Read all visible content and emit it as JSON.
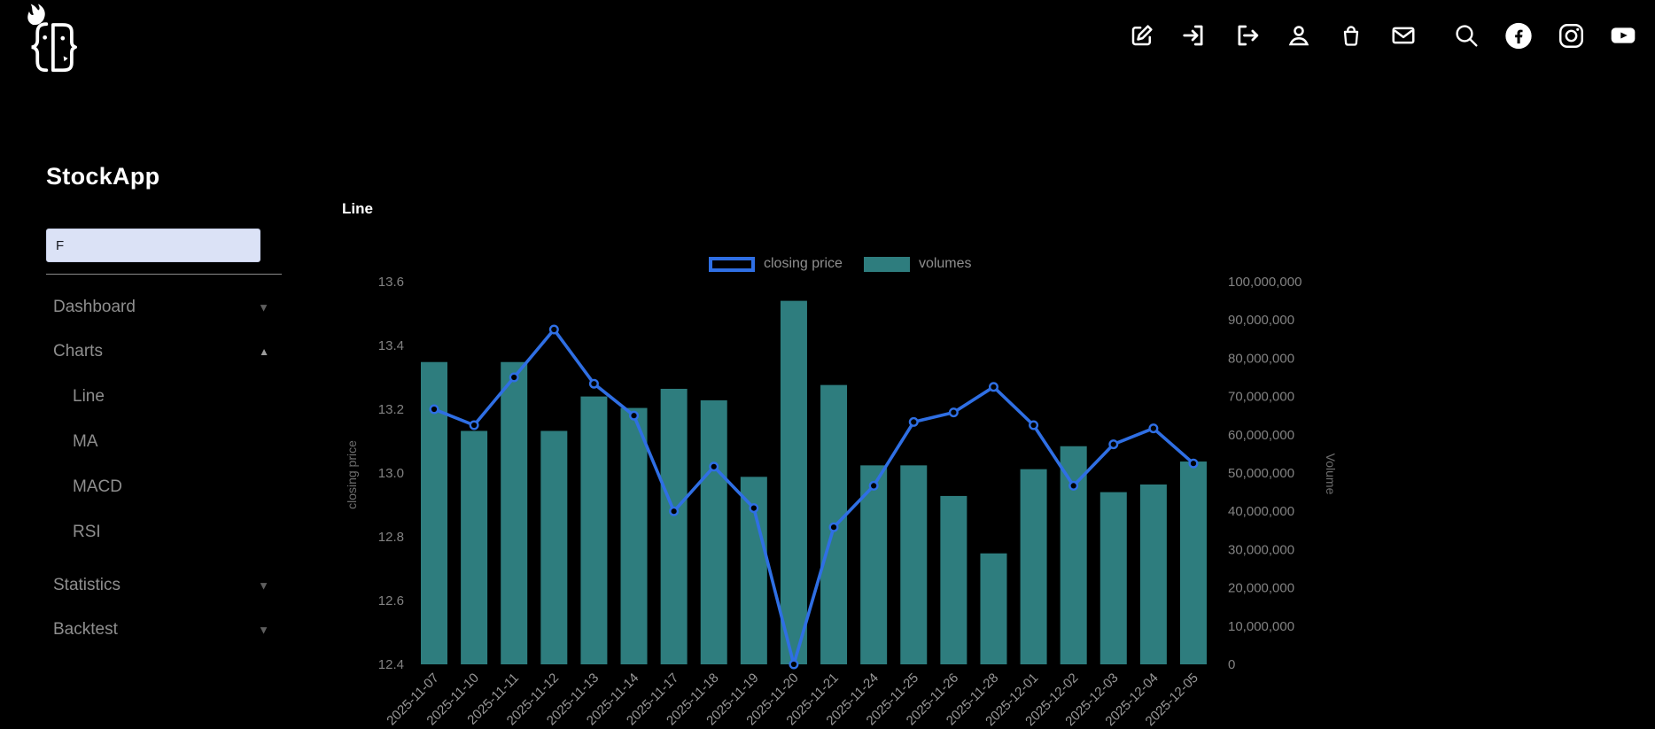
{
  "app": {
    "name": "StockApp"
  },
  "header": {
    "icons": [
      {
        "name": "edit"
      },
      {
        "name": "login"
      },
      {
        "name": "logout"
      },
      {
        "name": "user"
      },
      {
        "name": "shopping-bag"
      },
      {
        "name": "mail"
      },
      {
        "name": "search"
      },
      {
        "name": "facebook"
      },
      {
        "name": "instagram"
      },
      {
        "name": "youtube"
      }
    ]
  },
  "sidebar": {
    "title": "StockApp",
    "search": {
      "value": "F",
      "placeholder": ""
    },
    "items": [
      {
        "label": "Dashboard",
        "level": 0,
        "expand_state": "collapsed"
      },
      {
        "label": "Charts",
        "level": 0,
        "expand_state": "expanded"
      },
      {
        "label": "Line",
        "level": 1
      },
      {
        "label": "MA",
        "level": 1
      },
      {
        "label": "MACD",
        "level": 1
      },
      {
        "label": "RSI",
        "level": 1
      },
      {
        "label": "Statistics",
        "level": 0,
        "expand_state": "collapsed"
      },
      {
        "label": "Backtest",
        "level": 0,
        "expand_state": "collapsed"
      }
    ]
  },
  "main": {
    "title": "Line"
  },
  "chart_data": {
    "type": "bar",
    "subtype": "dual-axis bar + line",
    "title": "Line",
    "legend": [
      "closing price",
      "volumes"
    ],
    "legend_position": "top-center",
    "grid": false,
    "categories": [
      "2025-11-07",
      "2025-11-10",
      "2025-11-11",
      "2025-11-12",
      "2025-11-13",
      "2025-11-14",
      "2025-11-17",
      "2025-11-18",
      "2025-11-19",
      "2025-11-20",
      "2025-11-21",
      "2025-11-24",
      "2025-11-25",
      "2025-11-26",
      "2025-11-28",
      "2025-12-01",
      "2025-12-02",
      "2025-12-03",
      "2025-12-04",
      "2025-12-05"
    ],
    "series": [
      {
        "name": "closing price",
        "type": "line",
        "axis": "left",
        "color": "#2f6fe4",
        "values": [
          13.2,
          13.15,
          13.3,
          13.45,
          13.28,
          13.18,
          12.88,
          13.02,
          12.89,
          12.4,
          12.83,
          12.96,
          13.16,
          13.19,
          13.27,
          13.15,
          12.96,
          13.09,
          13.14,
          13.03
        ]
      },
      {
        "name": "volumes",
        "type": "bar",
        "axis": "right",
        "color": "#2e7d7e",
        "values": [
          79000000,
          61000000,
          79000000,
          61000000,
          70000000,
          67000000,
          72000000,
          69000000,
          49000000,
          95000000,
          73000000,
          52000000,
          52000000,
          44000000,
          29000000,
          51000000,
          57000000,
          45000000,
          47000000,
          53000000
        ]
      }
    ],
    "left_axis": {
      "label": "closing price",
      "min": 12.4,
      "max": 13.6,
      "tick_step": 0.2,
      "ticks": [
        "12.4",
        "12.6",
        "12.8",
        "13.0",
        "13.2",
        "13.4",
        "13.6"
      ]
    },
    "right_axis": {
      "label": "Volume",
      "min": 0,
      "max": 100000000,
      "tick_step": 10000000,
      "ticks": [
        "0",
        "10,000,000",
        "20,000,000",
        "30,000,000",
        "40,000,000",
        "50,000,000",
        "60,000,000",
        "70,000,000",
        "80,000,000",
        "90,000,000",
        "100,000,000"
      ]
    },
    "x_axis": {
      "label_rotation": -45
    }
  },
  "colors": {
    "background": "#000000",
    "line_blue": "#2f6fe4",
    "bar_teal": "#2e7d7e",
    "sidebar_text": "#8e8e8e",
    "tick_text": "#828282",
    "x_label_text": "#989898",
    "axis_name_text": "#6e6e6e",
    "legend_text": "#8f8f8f",
    "input_bg": "#dbe2f6",
    "title_text": "#ffffff"
  }
}
